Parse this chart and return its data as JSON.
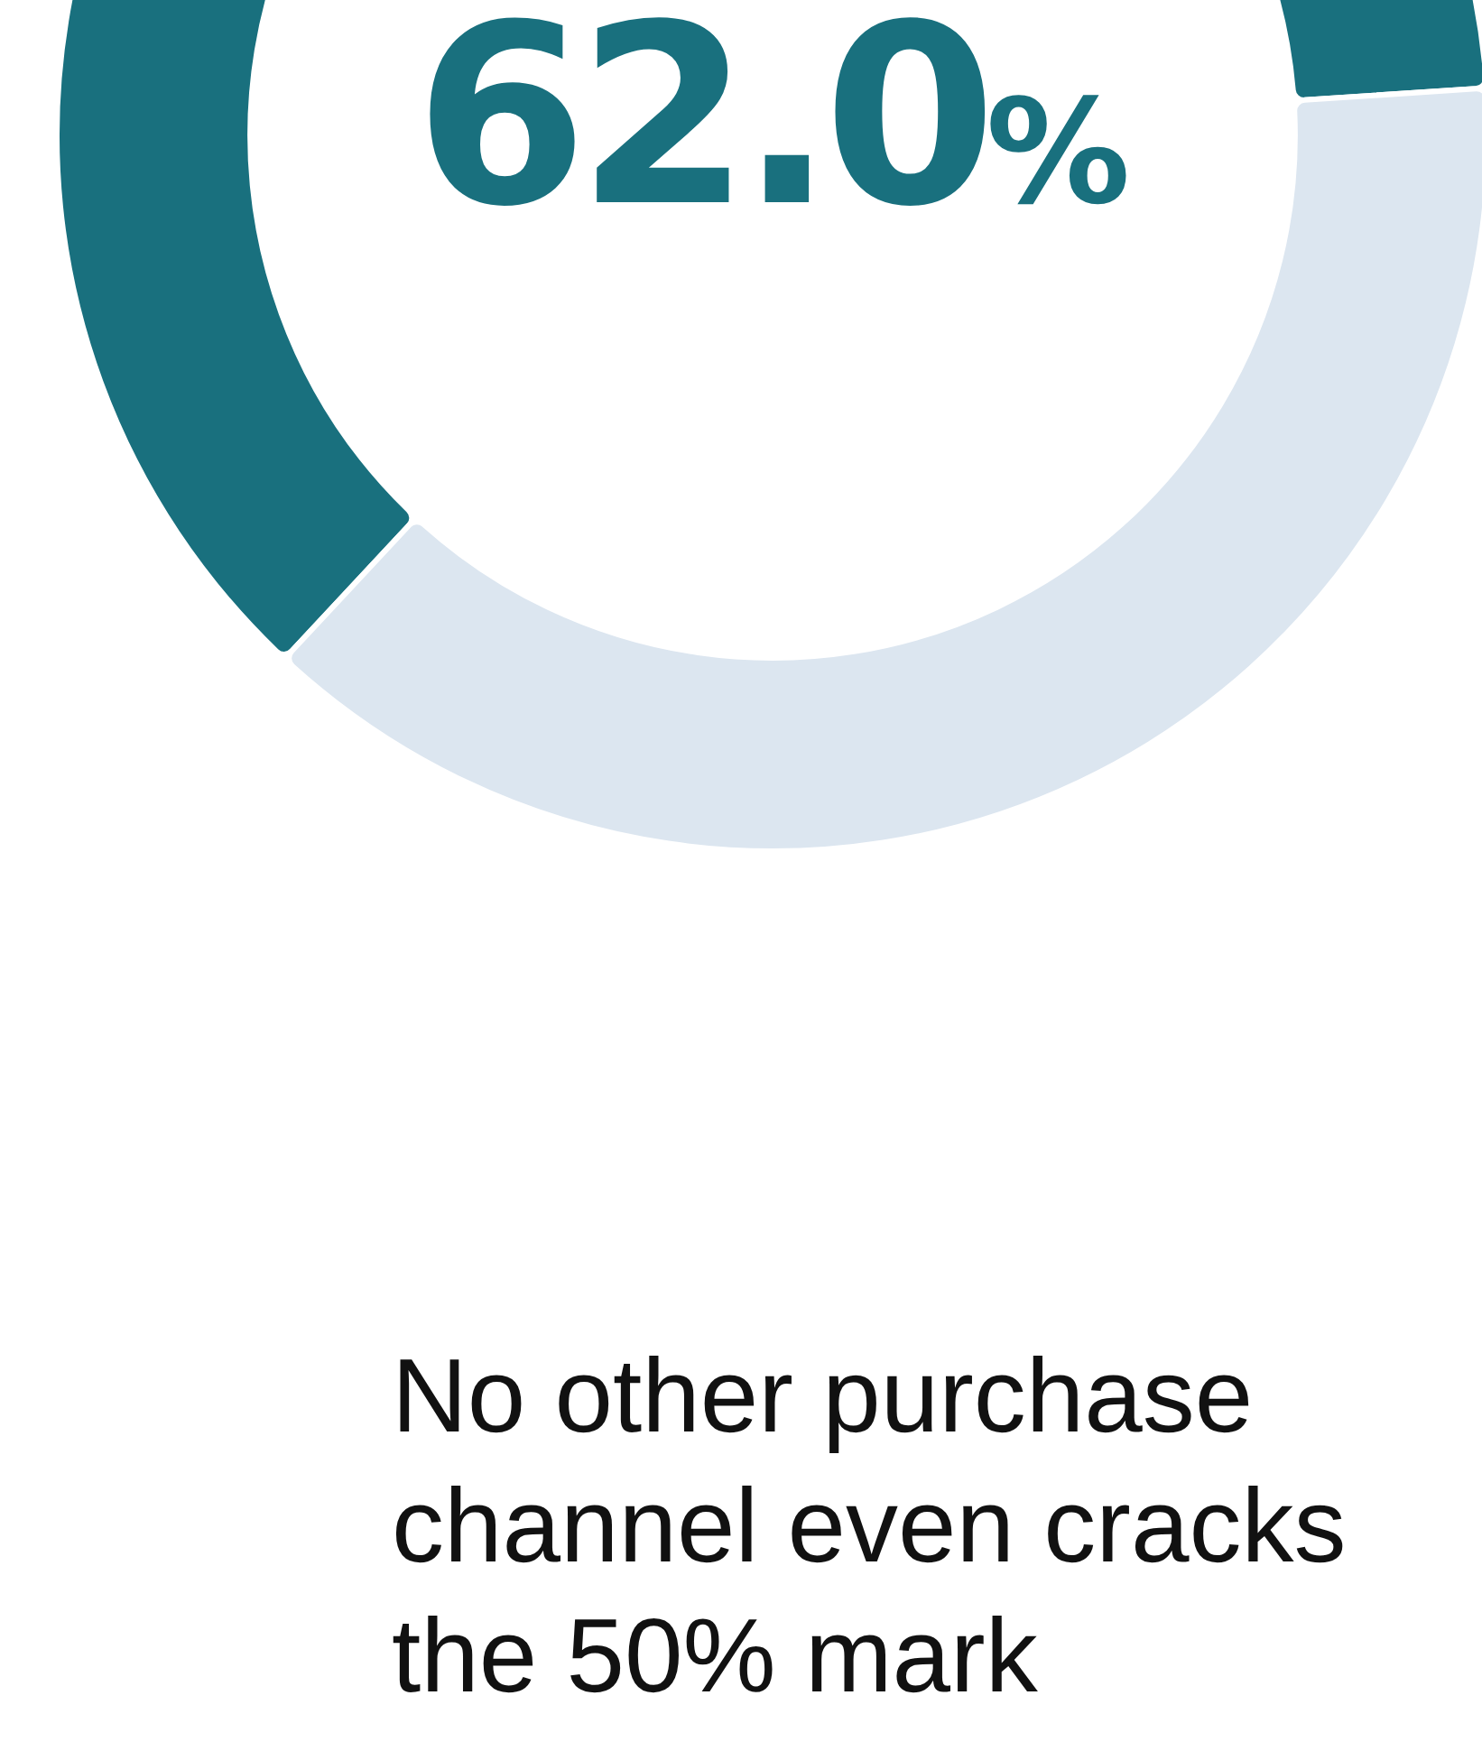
{
  "chart_data": {
    "type": "donut",
    "categories": [
      null,
      null
    ],
    "values": [
      62.0,
      38.0
    ],
    "colors": [
      "#19707e",
      "#dce6f0"
    ],
    "value_labels": [
      "62.0%",
      null
    ],
    "annotations": [
      "No other purchase channel even cracks the 50% mark"
    ],
    "legend": false
  }
}
